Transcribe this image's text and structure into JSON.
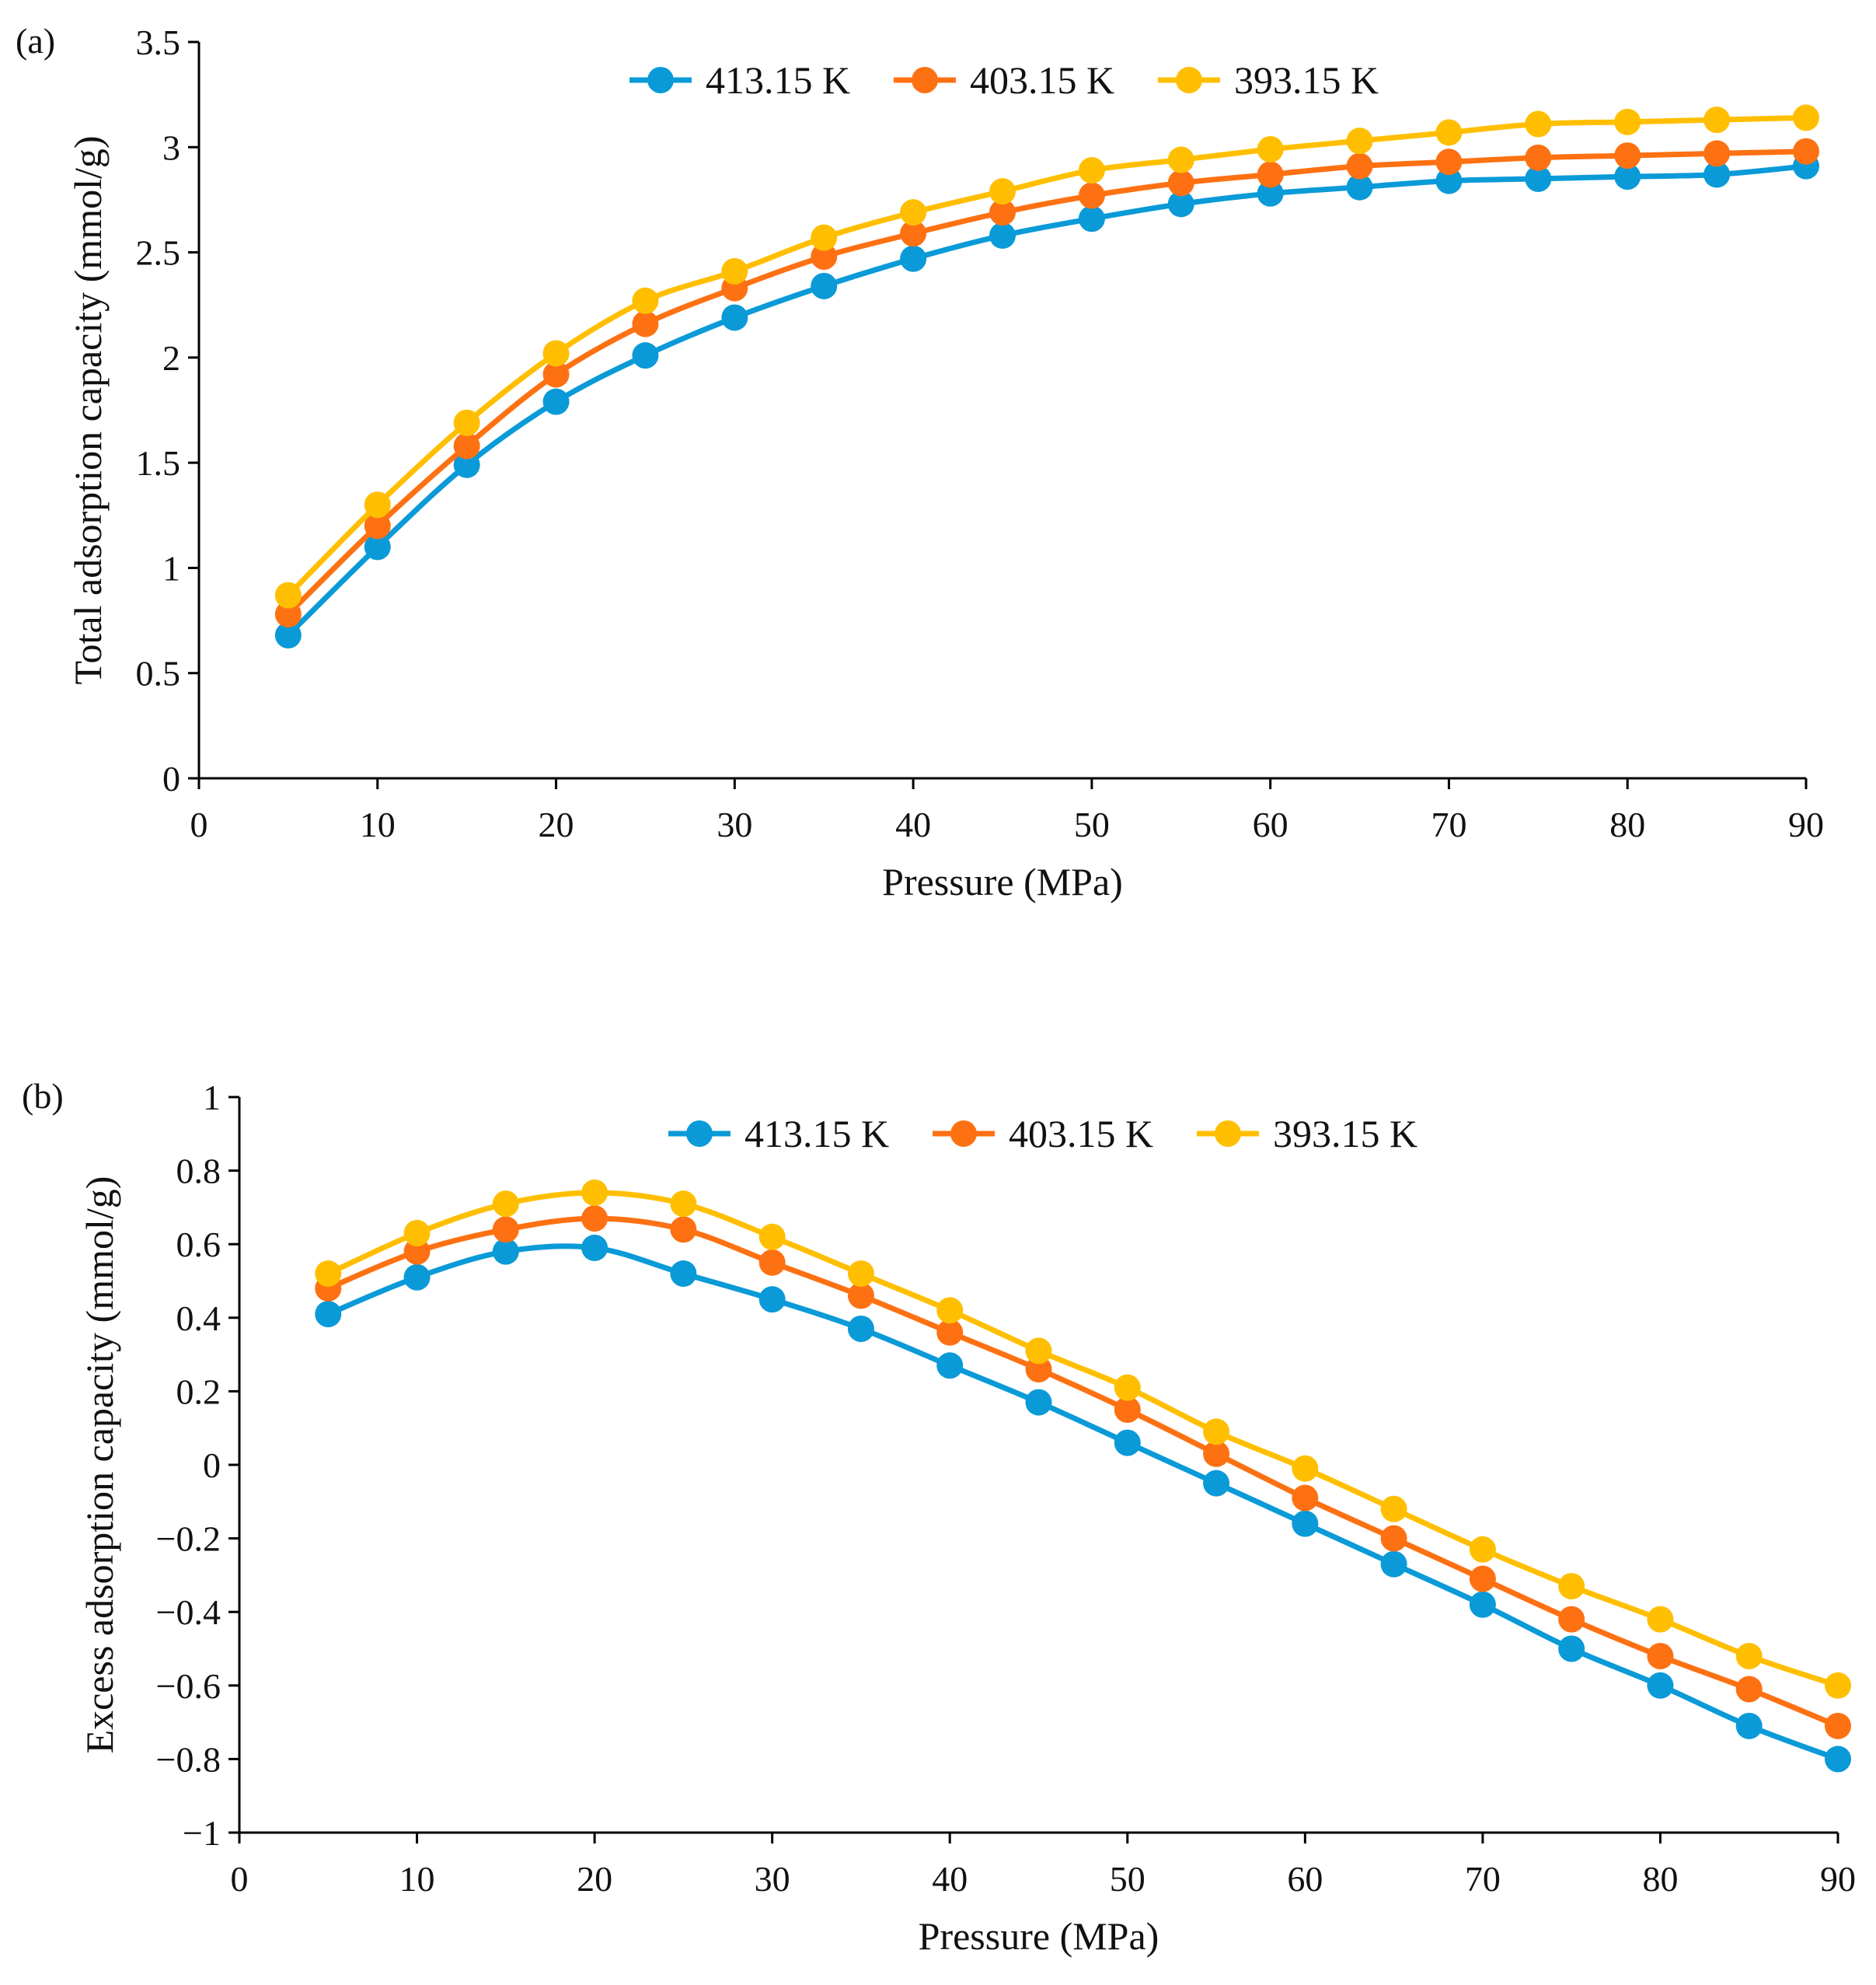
{
  "chart_data": [
    {
      "type": "line",
      "panel_label": "(a)",
      "xlabel": "Pressure (MPa)",
      "ylabel": "Total adsorption capacity (mmol/g)",
      "xlim": [
        0,
        90
      ],
      "ylim": [
        0,
        3.5
      ],
      "xticks": [
        "0",
        "10",
        "20",
        "30",
        "40",
        "50",
        "60",
        "70",
        "80",
        "90"
      ],
      "yticks": [
        "0",
        "0.5",
        "1",
        "1.5",
        "2",
        "2.5",
        "3",
        "3.5"
      ],
      "legend_position": "top-center",
      "x": [
        5,
        10,
        15,
        20,
        25,
        30,
        35,
        40,
        45,
        50,
        55,
        60,
        65,
        70,
        75,
        80,
        85,
        90
      ],
      "series": [
        {
          "name": "413.15 K",
          "color": "#0a9ad8",
          "values": [
            0.68,
            1.1,
            1.49,
            1.79,
            2.01,
            2.19,
            2.34,
            2.47,
            2.58,
            2.66,
            2.73,
            2.78,
            2.81,
            2.84,
            2.85,
            2.86,
            2.87,
            2.91
          ]
        },
        {
          "name": "403.15 K",
          "color": "#fd7113",
          "values": [
            0.78,
            1.2,
            1.58,
            1.92,
            2.16,
            2.33,
            2.48,
            2.59,
            2.69,
            2.77,
            2.83,
            2.87,
            2.91,
            2.93,
            2.95,
            2.96,
            2.97,
            2.98
          ]
        },
        {
          "name": "393.15 K",
          "color": "#ffbf00",
          "values": [
            0.87,
            1.3,
            1.69,
            2.02,
            2.27,
            2.41,
            2.57,
            2.69,
            2.79,
            2.89,
            2.94,
            2.99,
            3.03,
            3.07,
            3.11,
            3.12,
            3.13,
            3.14
          ]
        }
      ]
    },
    {
      "type": "line",
      "panel_label": "(b)",
      "xlabel": "Pressure (MPa)",
      "ylabel": "Excess adsorption capacity (mmol/g)",
      "xlim": [
        0,
        90
      ],
      "ylim": [
        -1,
        1
      ],
      "xticks": [
        "0",
        "10",
        "20",
        "30",
        "40",
        "50",
        "60",
        "70",
        "80",
        "90"
      ],
      "yticks": [
        "−1",
        "−0.8",
        "−0.6",
        "−0.4",
        "−0.2",
        "0",
        "0.2",
        "0.4",
        "0.6",
        "0.8",
        "1"
      ],
      "legend_position": "top-center",
      "x": [
        5,
        10,
        15,
        20,
        25,
        30,
        35,
        40,
        45,
        50,
        55,
        60,
        65,
        70,
        75,
        80,
        85,
        90
      ],
      "series": [
        {
          "name": "413.15 K",
          "color": "#0a9ad8",
          "values": [
            0.41,
            0.51,
            0.58,
            0.59,
            0.52,
            0.45,
            0.37,
            0.27,
            0.17,
            0.06,
            -0.05,
            -0.16,
            -0.27,
            -0.38,
            -0.5,
            -0.6,
            -0.71,
            -0.8
          ]
        },
        {
          "name": "403.15 K",
          "color": "#fd7113",
          "values": [
            0.48,
            0.58,
            0.64,
            0.67,
            0.64,
            0.55,
            0.46,
            0.36,
            0.26,
            0.15,
            0.03,
            -0.09,
            -0.2,
            -0.31,
            -0.42,
            -0.52,
            -0.61,
            -0.71
          ]
        },
        {
          "name": "393.15 K",
          "color": "#ffbf00",
          "values": [
            0.52,
            0.63,
            0.71,
            0.74,
            0.71,
            0.62,
            0.52,
            0.42,
            0.31,
            0.21,
            0.09,
            -0.01,
            -0.12,
            -0.23,
            -0.33,
            -0.42,
            -0.52,
            -0.6
          ]
        }
      ]
    }
  ]
}
